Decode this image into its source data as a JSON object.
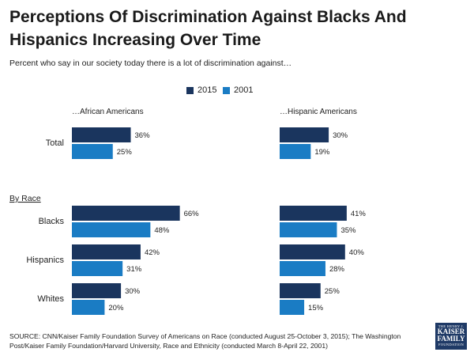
{
  "title": "Perceptions Of Discrimination Against Blacks And Hispanics Increasing Over Time",
  "subtitle": "Percent who say in our society today there is a lot of discrimination against…",
  "source": "SOURCE: CNN/Kaiser Family Foundation Survey of Americans on Race (conducted August 25-October 3, 2015); The Washington Post/Kaiser Family Foundation/Harvard University, Race and Ethnicity (conducted March 8-April 22, 2001)",
  "logo": {
    "line1": "THE HENRY J.",
    "line2": "KAISER",
    "line3": "FAMILY",
    "line4": "FOUNDATION"
  },
  "chart_data": {
    "type": "bar",
    "orientation": "horizontal",
    "section_label": "By Race",
    "legend": [
      {
        "name": "2015",
        "color": "#1a355e"
      },
      {
        "name": "2001",
        "color": "#1a7cc4"
      }
    ],
    "panels": [
      {
        "title": "…African  Americans",
        "categories": [
          "Total",
          "Blacks",
          "Hispanics",
          "Whites"
        ],
        "series": [
          {
            "name": "2015",
            "values": [
              36,
              66,
              42,
              30
            ]
          },
          {
            "name": "2001",
            "values": [
              25,
              48,
              31,
              20
            ]
          }
        ]
      },
      {
        "title": "…Hispanic  Americans",
        "categories": [
          "Total",
          "Blacks",
          "Hispanics",
          "Whites"
        ],
        "series": [
          {
            "name": "2015",
            "values": [
              30,
              41,
              40,
              25
            ]
          },
          {
            "name": "2001",
            "values": [
              19,
              35,
              28,
              15
            ]
          }
        ]
      }
    ],
    "xlim": [
      0,
      100
    ],
    "value_suffix": "%"
  }
}
